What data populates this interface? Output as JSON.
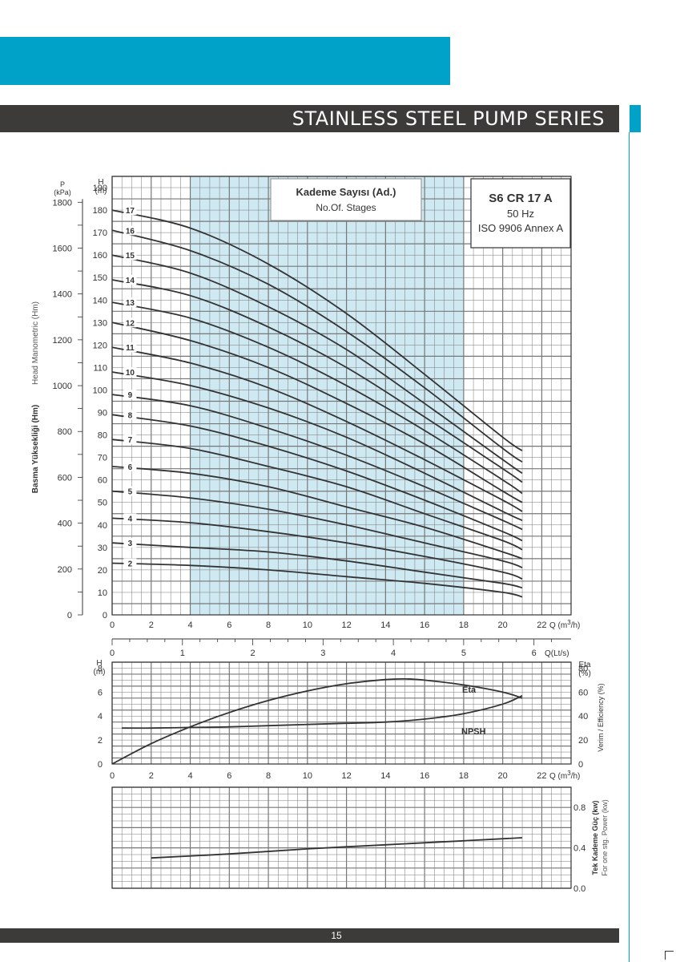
{
  "header": {
    "title": "STAINLESS STEEL PUMP SERIES"
  },
  "footer": {
    "page_number": "15"
  },
  "colors": {
    "brand_cyan": "#00a2c8",
    "bar_dark": "#3d3b3a",
    "highlight": "#cfe9f3",
    "curve": "#333333"
  },
  "chart_data": [
    {
      "type": "line",
      "panel": "head",
      "info_box": {
        "model": "S6 CR 17 A",
        "frequency": "50 Hz",
        "standard": "ISO 9906 Annex A"
      },
      "stage_box": {
        "title": "Kademe Sayısı (Ad.)",
        "subtitle": "No.Of. Stages"
      },
      "xlabel": "Q (m3/h)",
      "x_ticks": [
        "0",
        "2",
        "4",
        "6",
        "8",
        "10",
        "12",
        "14",
        "16",
        "18",
        "20",
        "22"
      ],
      "xlim": [
        0,
        23.5
      ],
      "x2label": "Q(Lt/s)",
      "x2_ticks": [
        "0",
        "1",
        "2",
        "3",
        "4",
        "5",
        "6"
      ],
      "y_unit_label": [
        "H",
        "(m)"
      ],
      "y_ticks": [
        "0",
        "10",
        "20",
        "30",
        "40",
        "50",
        "60",
        "70",
        "80",
        "90",
        "100",
        "110",
        "120",
        "130",
        "140",
        "150",
        "160",
        "170",
        "180",
        "190"
      ],
      "ylim": [
        0,
        195
      ],
      "y2_unit_label": [
        "P",
        "(kPa)"
      ],
      "y2_ticks": [
        "0",
        "200",
        "400",
        "600",
        "800",
        "1000",
        "1200",
        "1400",
        "1600",
        "1800"
      ],
      "ylabel_left_en": "Head Manometric (Hm)",
      "ylabel_left_tr": "Basma Yüksekliği (Hm)",
      "recommended_range": [
        4,
        18
      ],
      "x": [
        0,
        4,
        8,
        12,
        16,
        20,
        21
      ],
      "series": [
        {
          "name": "17",
          "values": [
            180,
            172,
            156,
            134,
            107,
            79,
            73
          ]
        },
        {
          "name": "16",
          "values": [
            171,
            162,
            147,
            126,
            101,
            74,
            68
          ]
        },
        {
          "name": "15",
          "values": [
            160,
            152,
            137,
            118,
            94,
            69,
            63
          ]
        },
        {
          "name": "14",
          "values": [
            149,
            142,
            128,
            110,
            88,
            65,
            59
          ]
        },
        {
          "name": "13",
          "values": [
            139,
            132,
            119,
            102,
            82,
            60,
            54
          ]
        },
        {
          "name": "12",
          "values": [
            130,
            122,
            110,
            94,
            76,
            55,
            50
          ]
        },
        {
          "name": "11",
          "values": [
            119,
            112,
            101,
            86,
            69,
            51,
            46
          ]
        },
        {
          "name": "10",
          "values": [
            108,
            102,
            92,
            79,
            63,
            46,
            42
          ]
        },
        {
          "name": "9",
          "values": [
            98,
            93,
            83,
            71,
            57,
            42,
            38
          ]
        },
        {
          "name": "8",
          "values": [
            89,
            84,
            75,
            64,
            51,
            37,
            33
          ]
        },
        {
          "name": "7",
          "values": [
            78,
            74,
            66,
            57,
            45,
            33,
            29
          ]
        },
        {
          "name": "6",
          "values": [
            66,
            63,
            57,
            48,
            39,
            28,
            25
          ]
        },
        {
          "name": "5",
          "values": [
            55,
            52,
            47,
            40,
            32,
            24,
            21
          ]
        },
        {
          "name": "4",
          "values": [
            43,
            41,
            37,
            32,
            26,
            19,
            16
          ]
        },
        {
          "name": "3",
          "values": [
            32,
            30,
            28,
            24,
            19,
            14,
            12
          ]
        },
        {
          "name": "2",
          "values": [
            23,
            22,
            20,
            17,
            14,
            10,
            8
          ]
        }
      ]
    },
    {
      "type": "line",
      "panel": "efficiency",
      "xlabel": "Q (m3/h)",
      "x_ticks": [
        "0",
        "2",
        "4",
        "6",
        "8",
        "10",
        "12",
        "14",
        "16",
        "18",
        "20",
        "22"
      ],
      "xlim": [
        0,
        23.5
      ],
      "y_unit_label": [
        "H",
        "(m)"
      ],
      "y_ticks": [
        "0",
        "2",
        "4",
        "6",
        "8"
      ],
      "ylim": [
        0,
        8.5
      ],
      "y2_unit_label": [
        "Eta",
        "(%)"
      ],
      "y2_ticks": [
        "0",
        "20",
        "40",
        "60",
        "80"
      ],
      "y2label": "Verim / Efficiency (%)",
      "series": [
        {
          "name": "Eta",
          "axis": "right",
          "x": [
            0,
            2,
            4,
            6,
            8,
            10,
            12,
            14,
            15,
            16,
            18,
            20,
            21
          ],
          "values": [
            0,
            17,
            31,
            43,
            53,
            61,
            67,
            70.5,
            71,
            70,
            66,
            60,
            55
          ]
        },
        {
          "name": "NPSH",
          "axis": "left",
          "x": [
            0.5,
            2,
            4,
            6,
            8,
            10,
            12,
            14,
            16,
            18,
            20,
            21
          ],
          "values": [
            3.0,
            3.0,
            3.05,
            3.1,
            3.2,
            3.3,
            3.4,
            3.5,
            3.75,
            4.2,
            5.0,
            5.7
          ]
        }
      ]
    },
    {
      "type": "line",
      "panel": "power",
      "y_ticks": [
        "0.0",
        "0.4",
        "0.8"
      ],
      "ylim": [
        0,
        1.0
      ],
      "ylabel_tr": "Tek Kademe Güç (kw)",
      "ylabel_en": "For one stg. Power (kw)",
      "series": [
        {
          "name": "P",
          "x": [
            2,
            6,
            10,
            14,
            18,
            21
          ],
          "values": [
            0.3,
            0.34,
            0.39,
            0.43,
            0.47,
            0.5
          ]
        }
      ]
    }
  ]
}
